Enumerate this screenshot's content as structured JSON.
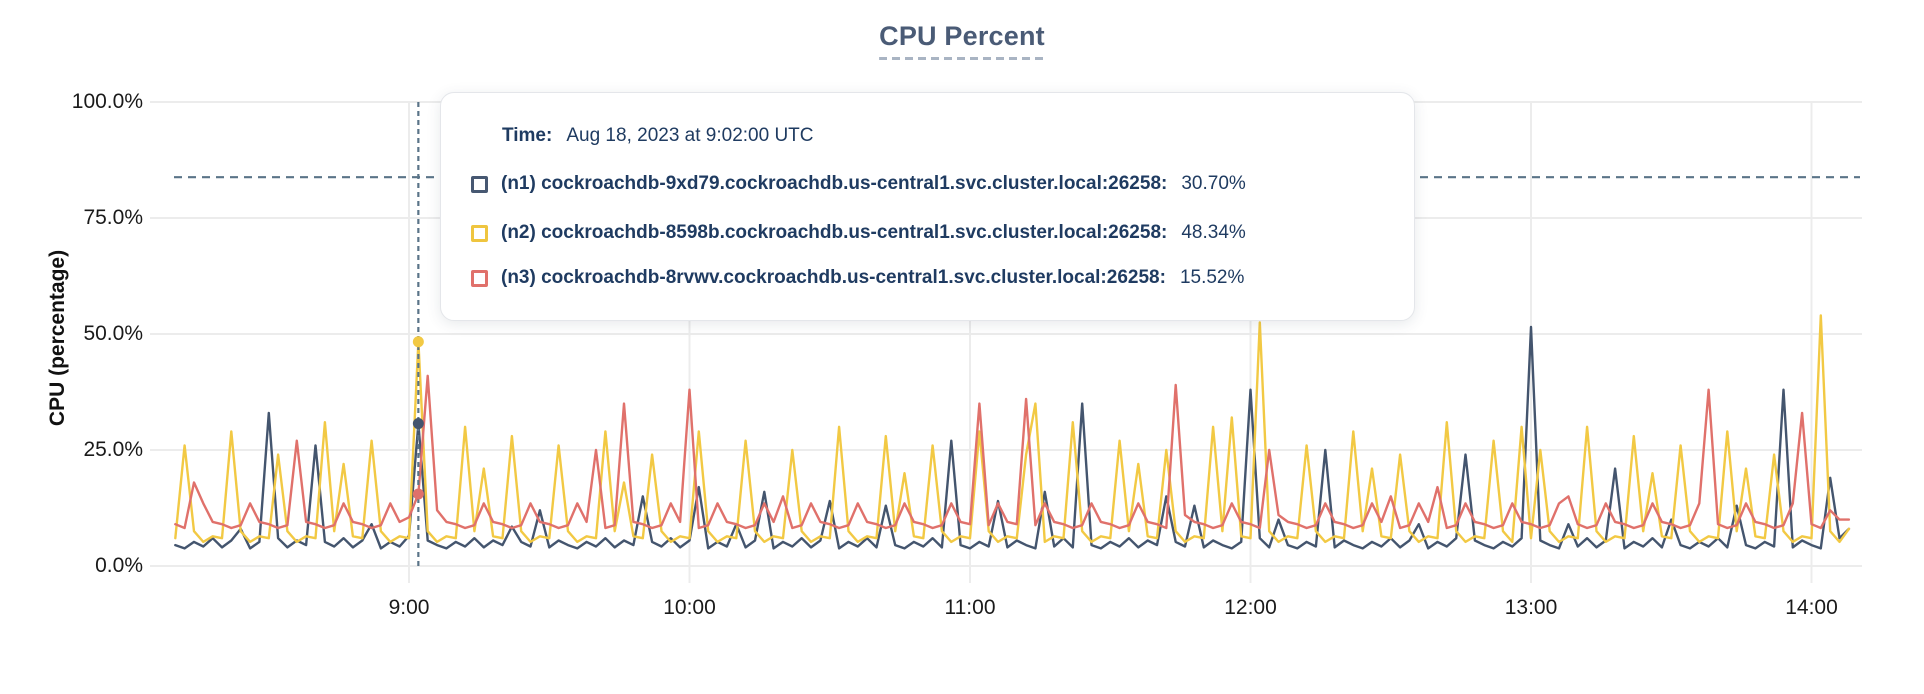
{
  "header": {
    "title": "CPU Percent"
  },
  "tooltip": {
    "time_label": "Time:",
    "time_value": "Aug 18, 2023 at 9:02:00 UTC",
    "rows": [
      {
        "label": "(n1) cockroachdb-9xd79.cockroachdb.us-central1.svc.cluster.local:26258:",
        "value": "30.70%",
        "color": "#475872"
      },
      {
        "label": "(n2) cockroachdb-8598b.cockroachdb.us-central1.svc.cluster.local:26258:",
        "value": "48.34%",
        "color": "#efc53f"
      },
      {
        "label": "(n3) cockroachdb-8rvwv.cockroachdb.us-central1.svc.cluster.local:26258:",
        "value": "15.52%",
        "color": "#e0716b"
      }
    ]
  },
  "chart_data": {
    "type": "line",
    "title": "CPU Percent",
    "ylabel": "CPU (percentage)",
    "ylim": [
      0,
      100
    ],
    "grid": true,
    "legend_position": "tooltip",
    "y_ticks": [
      {
        "label": "100.0%",
        "value": 100
      },
      {
        "label": "75.0%",
        "value": 75
      },
      {
        "label": "50.0%",
        "value": 50
      },
      {
        "label": "25.0%",
        "value": 25
      },
      {
        "label": "0.0%",
        "value": 0
      }
    ],
    "x_ticks": [
      {
        "label": "9:00",
        "minutes_after_8am": 60
      },
      {
        "label": "10:00",
        "minutes_after_8am": 120
      },
      {
        "label": "11:00",
        "minutes_after_8am": 180
      },
      {
        "label": "12:00",
        "minutes_after_8am": 240
      },
      {
        "label": "13:00",
        "minutes_after_8am": 300
      },
      {
        "label": "14:00",
        "minutes_after_8am": 360
      }
    ],
    "x_start_minutes_after_8am": 10,
    "x_step_minutes": 2,
    "point_count": 180,
    "crosshair": {
      "time_label": "9:02:00 UTC",
      "minutes_after_8am": 62,
      "point_values": [
        30.7,
        48.34,
        15.52
      ]
    },
    "reference_line_percent": 83.8,
    "series": [
      {
        "name": "(n1) cockroachdb-9xd79.cockroachdb.us-central1.svc.cluster.local:26258",
        "color": "#44556e",
        "values": [
          4.5,
          3.8,
          5.2,
          4.2,
          6,
          4,
          5.5,
          8,
          3.8,
          5.2,
          33,
          6,
          4,
          5.5,
          4.5,
          26,
          5.2,
          4.2,
          6,
          4,
          5.5,
          9,
          3.8,
          5.2,
          4.2,
          6.5,
          30.7,
          5.5,
          4.5,
          3.8,
          5.2,
          4.2,
          6,
          4,
          5.5,
          4.5,
          8.5,
          5.2,
          4.2,
          12,
          4,
          5.5,
          4.5,
          3.8,
          5.2,
          4.2,
          6,
          4,
          5.5,
          4.5,
          15,
          5.2,
          4.2,
          6,
          4,
          5.5,
          17,
          3.8,
          5.2,
          4.2,
          9,
          4,
          5.5,
          16,
          3.8,
          5.2,
          4.2,
          6,
          4,
          5.5,
          14,
          3.8,
          5.2,
          4.2,
          6,
          4,
          13,
          4.5,
          3.8,
          5.2,
          4.2,
          6,
          4,
          27,
          4.5,
          3.8,
          5.2,
          4.2,
          14,
          4,
          5.5,
          4.5,
          3.8,
          16,
          4.2,
          6,
          4,
          35,
          4.5,
          3.8,
          5.2,
          4.2,
          6,
          4,
          5.5,
          4.5,
          15,
          5.2,
          4.2,
          13,
          4,
          5.5,
          4.5,
          3.8,
          5.2,
          38,
          6,
          4,
          10,
          4.5,
          3.8,
          5.2,
          4.2,
          25,
          4,
          5.5,
          4.5,
          3.8,
          5.2,
          4.2,
          6,
          4,
          5.5,
          9,
          3.8,
          5.2,
          4.2,
          6,
          24,
          5.5,
          4.5,
          3.8,
          5.2,
          4.2,
          6,
          51.5,
          5.5,
          4.5,
          3.8,
          9,
          4.2,
          6,
          4,
          5.5,
          21,
          3.8,
          5.2,
          4.2,
          6,
          4,
          10,
          4.5,
          3.8,
          5.2,
          4.2,
          6,
          4,
          13,
          4.5,
          3.8,
          5.2,
          4.2,
          38,
          4,
          5.5,
          4.5,
          3.8,
          19,
          6,
          8
        ]
      },
      {
        "name": "(n2) cockroachdb-8598b.cockroachdb.us-central1.svc.cluster.local:26258",
        "color": "#f2c944",
        "values": [
          6,
          26,
          7.5,
          5.2,
          6.4,
          6,
          29,
          7.5,
          5.2,
          6.4,
          6,
          24,
          7.5,
          5.2,
          6.4,
          6,
          31,
          7.5,
          22,
          6.4,
          6,
          27,
          7.5,
          5.2,
          6.4,
          6,
          48.34,
          7.5,
          5.2,
          6.4,
          6,
          30,
          7.5,
          21,
          6.4,
          6,
          28,
          7.5,
          5.2,
          6.4,
          6,
          26,
          7.5,
          5.2,
          6.4,
          6,
          29,
          7.5,
          18,
          6.4,
          6,
          24,
          7.5,
          5.2,
          6.4,
          6,
          29,
          7.5,
          5.2,
          6.4,
          6,
          27,
          7.5,
          5.2,
          6.4,
          6,
          25,
          7.5,
          5.2,
          6.4,
          6,
          30,
          7.5,
          5.2,
          6.4,
          6,
          28,
          7.5,
          20,
          6.4,
          6,
          26,
          7.5,
          5.2,
          6.4,
          6,
          29,
          7.5,
          5.2,
          6.4,
          6,
          24,
          35,
          5.2,
          6.4,
          6,
          31,
          7.5,
          5.2,
          6.4,
          6,
          27,
          7.5,
          22,
          6.4,
          6,
          25,
          7.5,
          5.2,
          6.4,
          6,
          30,
          7.5,
          32,
          6.4,
          6,
          52.5,
          7.5,
          5.2,
          6.4,
          6,
          26,
          7.5,
          5.2,
          6.4,
          6,
          29,
          7.5,
          21,
          6.4,
          6,
          24,
          7.5,
          5.2,
          6.4,
          6,
          31,
          7.5,
          5.2,
          6.4,
          6,
          27,
          7.5,
          5.2,
          30,
          6,
          25,
          7.5,
          5.2,
          6.4,
          6,
          30,
          7.5,
          5.2,
          6.4,
          6,
          28,
          7.5,
          20,
          6.4,
          6,
          26,
          7.5,
          5.2,
          6.4,
          6,
          29,
          7.5,
          21,
          6.4,
          6,
          24,
          7.5,
          5.2,
          6.4,
          6,
          54,
          7.5,
          5.2,
          8
        ]
      },
      {
        "name": "(n3) cockroachdb-8rvwv.cockroachdb.us-central1.svc.cluster.local:26258",
        "color": "#e0716b",
        "values": [
          9,
          8.2,
          18,
          13.5,
          9.5,
          9,
          8.2,
          8.8,
          13.5,
          9.5,
          9,
          8.2,
          8.8,
          27,
          9.5,
          9,
          8.2,
          8.8,
          13.5,
          9.5,
          9,
          8.2,
          8.8,
          13.5,
          9.5,
          10.5,
          15.52,
          41,
          12,
          9.5,
          9,
          8.2,
          8.8,
          13.5,
          9.5,
          9,
          8.2,
          8.8,
          13.5,
          9.5,
          9,
          8.2,
          8.8,
          13.5,
          9.5,
          25,
          8.2,
          8.8,
          35,
          9.5,
          9,
          8.2,
          8.8,
          13.5,
          9.5,
          38,
          8.2,
          8.8,
          13.5,
          9.5,
          9,
          8.2,
          8.8,
          13.5,
          9.5,
          15,
          8.2,
          8.8,
          13.5,
          9.5,
          9,
          8.2,
          8.8,
          13.5,
          9.5,
          9,
          8.2,
          8.8,
          13.5,
          9.5,
          9,
          8.2,
          8.8,
          13.5,
          9.5,
          9,
          35,
          8.8,
          13.5,
          9.5,
          9,
          36,
          8.8,
          13.5,
          9.5,
          9,
          8.2,
          8.8,
          13.5,
          9.5,
          9,
          8.2,
          8.8,
          13.5,
          9.5,
          9,
          8.2,
          39,
          11,
          9.5,
          9,
          8.2,
          8.8,
          13.5,
          9.5,
          9,
          8.2,
          25,
          11,
          9.5,
          9,
          8.2,
          8.8,
          13.5,
          9.5,
          9,
          8.2,
          8.8,
          13.5,
          9.5,
          15,
          8.2,
          8.8,
          13.5,
          9.5,
          17,
          8.2,
          8.8,
          13.5,
          9.5,
          9,
          8.2,
          8.8,
          13.5,
          9.5,
          9,
          8.2,
          8.8,
          13.5,
          15,
          9,
          8.2,
          8.8,
          13.5,
          9.5,
          9,
          8.2,
          8.8,
          13.5,
          9.5,
          9,
          8.2,
          8.8,
          13.5,
          38,
          9,
          8.2,
          8.8,
          13.5,
          9.5,
          9,
          8.2,
          8.8,
          13.5,
          33,
          9,
          8.2,
          12,
          10,
          10
        ]
      }
    ],
    "colors": {
      "grid": "#ececec",
      "crosshair": "#5a7488",
      "reference_line": "#5a7488",
      "title_text": "#4a5b76",
      "tooltip_text": "#1f3b61",
      "axis_text": "#1a1a1a"
    }
  }
}
